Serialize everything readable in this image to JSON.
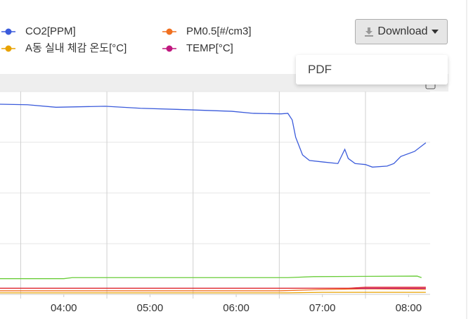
{
  "chart_data": {
    "type": "line",
    "xlim": [
      3.26,
      8.25
    ],
    "ylim": [
      0,
      4
    ],
    "xticks": [
      {
        "value": 4,
        "label": "04:00"
      },
      {
        "value": 5,
        "label": "05:00"
      },
      {
        "value": 6,
        "label": "06:00"
      },
      {
        "value": 7,
        "label": "07:00"
      },
      {
        "value": 8,
        "label": "08:00"
      }
    ],
    "xgrid": [
      3.5,
      4.5,
      5.5,
      6.5,
      7.5
    ],
    "grid": true,
    "series": [
      {
        "name": "CO2[PPM]",
        "color": "#3b5bdb",
        "legend": true,
        "x": [
          3.26,
          3.58,
          3.91,
          4.48,
          4.89,
          5.46,
          5.95,
          6.2,
          6.52,
          6.6,
          6.65,
          6.69,
          6.77,
          6.85,
          7.01,
          7.18,
          7.26,
          7.3,
          7.38,
          7.5,
          7.58,
          7.75,
          7.83,
          7.91,
          8.07,
          8.2
        ],
        "values": [
          3.75,
          3.74,
          3.69,
          3.71,
          3.67,
          3.64,
          3.61,
          3.57,
          3.56,
          3.57,
          3.44,
          3.1,
          2.75,
          2.64,
          2.61,
          2.58,
          2.86,
          2.68,
          2.58,
          2.56,
          2.51,
          2.53,
          2.58,
          2.72,
          2.82,
          2.99
        ]
      },
      {
        "name": "A동 실내 체감 온도[°C]",
        "color": "#e8a200",
        "legend": true,
        "x": [
          3.26,
          6.6,
          7.0,
          8.2
        ],
        "values": [
          0.03,
          0.03,
          0.04,
          0.04
        ]
      },
      {
        "name": "PM0.5[#/cm3]",
        "color": "#f07020",
        "legend": true,
        "x": [
          3.26,
          6.5,
          6.9,
          7.5,
          8.2
        ],
        "values": [
          0.07,
          0.07,
          0.09,
          0.11,
          0.1
        ]
      },
      {
        "name": "TEMP[°C]",
        "color": "#c0187f",
        "legend": true,
        "x": [
          3.26,
          8.2
        ],
        "values": [
          0.12,
          0.12
        ]
      },
      {
        "color": "#e02828",
        "x": [
          3.26,
          7.3,
          7.5,
          8.2
        ],
        "values": [
          0.12,
          0.12,
          0.14,
          0.14
        ]
      },
      {
        "color": "#6acd3a",
        "x": [
          3.26,
          4.0,
          4.1,
          6.6,
          6.9,
          8.1,
          8.15
        ],
        "values": [
          0.31,
          0.31,
          0.33,
          0.33,
          0.35,
          0.36,
          0.33
        ]
      }
    ]
  },
  "toolbar": {
    "download": "Download",
    "menu": [
      "PDF"
    ]
  }
}
